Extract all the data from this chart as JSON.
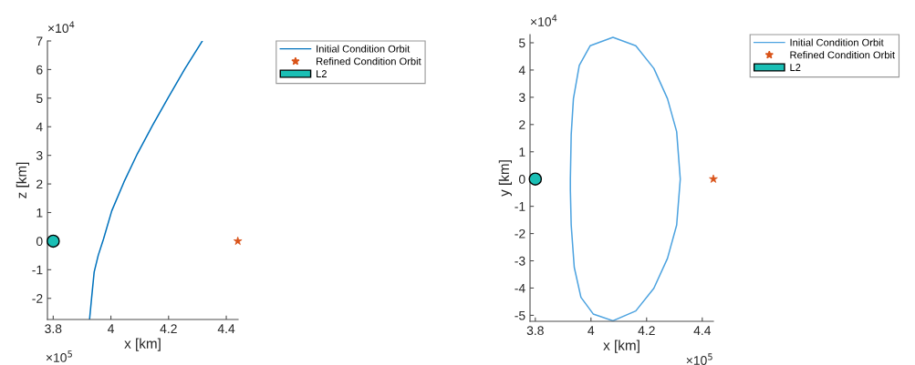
{
  "chart_data": [
    {
      "type": "line",
      "xlabel": "x [km]",
      "ylabel": "z [km]",
      "xlim": [
        3.78,
        4.441
      ],
      "ylim": [
        -2.74,
        7.0
      ],
      "xticks": [
        3.8,
        4,
        4.2,
        4.4
      ],
      "yticks": [
        -2,
        -1,
        0,
        1,
        2,
        3,
        4,
        5,
        6,
        7
      ],
      "annotations": [
        "×10$^{4}$",
        "×10$^{5}$"
      ],
      "legend": "right",
      "series": [
        {
          "name": "Initial Condition Orbit",
          "color": "#0072bd",
          "marker": "none",
          "line_style": "solid",
          "x": [
            3.926,
            3.933,
            3.942,
            3.956,
            3.974,
            4.003,
            4.045,
            4.092,
            4.145,
            4.198,
            4.256,
            4.317
          ],
          "values": [
            -2.74,
            -2.0,
            -1.08,
            -0.5,
            0.06,
            1.06,
            2.06,
            3.06,
            4.06,
            5.01,
            6.02,
            7.0
          ]
        },
        {
          "name": "Refined Condition Orbit",
          "type": "scatter",
          "color": "#d95319",
          "marker": "star",
          "x": [
            4.44
          ],
          "values": [
            0
          ]
        },
        {
          "name": "L2",
          "type": "scatter",
          "color": "#1abfb5",
          "marker": "circle",
          "x": [
            3.8
          ],
          "values": [
            0
          ]
        }
      ]
    },
    {
      "type": "line",
      "xlabel": "x [km]",
      "ylabel": "y [km]",
      "xlim": [
        3.781,
        4.44
      ],
      "ylim": [
        -5.22,
        5.3
      ],
      "xticks": [
        3.8,
        4,
        4.2,
        4.4
      ],
      "yticks": [
        -5,
        -4,
        -3,
        -2,
        -1,
        0,
        1,
        2,
        3,
        4,
        5
      ],
      "annotations": [
        "×10$^{4}$",
        "×10$^{5}$"
      ],
      "legend": "right",
      "series": [
        {
          "name": "Initial Condition Orbit",
          "color": "#4da3e0",
          "marker": "none",
          "line_style": "solid",
          "x": [
            3.926,
            3.929,
            3.937,
            3.958,
            3.997,
            4.079,
            4.161,
            4.226,
            4.275,
            4.308,
            4.321,
            4.308,
            4.275,
            4.226,
            4.161,
            4.079,
            4.008,
            3.964,
            3.94,
            3.929,
            3.926,
            3.926
          ],
          "values": [
            0,
            1.63,
            2.95,
            4.17,
            4.89,
            5.2,
            4.89,
            4.06,
            2.95,
            1.74,
            0,
            -1.69,
            -2.91,
            -4.01,
            -4.84,
            -5.2,
            -4.95,
            -4.34,
            -3.24,
            -1.69,
            -0.4,
            -0.05
          ]
        },
        {
          "name": "Refined Condition Orbit",
          "type": "scatter",
          "color": "#d95319",
          "marker": "star",
          "x": [
            4.44
          ],
          "values": [
            0
          ]
        },
        {
          "name": "L2",
          "type": "scatter",
          "color": "#1abfb5",
          "marker": "circle",
          "x": [
            3.8
          ],
          "values": [
            0
          ]
        }
      ]
    }
  ]
}
